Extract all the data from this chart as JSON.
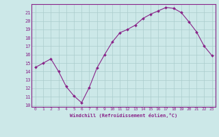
{
  "x": [
    0,
    1,
    2,
    3,
    4,
    5,
    6,
    7,
    8,
    9,
    10,
    11,
    12,
    13,
    14,
    15,
    16,
    17,
    18,
    19,
    20,
    21,
    22,
    23
  ],
  "y": [
    14.5,
    15.0,
    15.5,
    14.0,
    12.2,
    11.1,
    10.3,
    12.1,
    14.4,
    16.0,
    17.5,
    18.6,
    19.0,
    19.5,
    20.3,
    20.8,
    21.2,
    21.6,
    21.5,
    21.0,
    19.9,
    18.7,
    17.0,
    15.9
  ],
  "line_color": "#882288",
  "marker": "D",
  "marker_size": 2.0,
  "background_color": "#cce8e8",
  "grid_color": "#aacccc",
  "tick_color": "#882288",
  "label_color": "#882288",
  "xlabel": "Windchill (Refroidissement éolien,°C)",
  "xlim": [
    -0.5,
    23.5
  ],
  "ylim": [
    9.8,
    22.0
  ],
  "xticks": [
    0,
    1,
    2,
    3,
    4,
    5,
    6,
    7,
    8,
    9,
    10,
    11,
    12,
    13,
    14,
    15,
    16,
    17,
    18,
    19,
    20,
    21,
    22,
    23
  ],
  "yticks": [
    10,
    11,
    12,
    13,
    14,
    15,
    16,
    17,
    18,
    19,
    20,
    21
  ]
}
